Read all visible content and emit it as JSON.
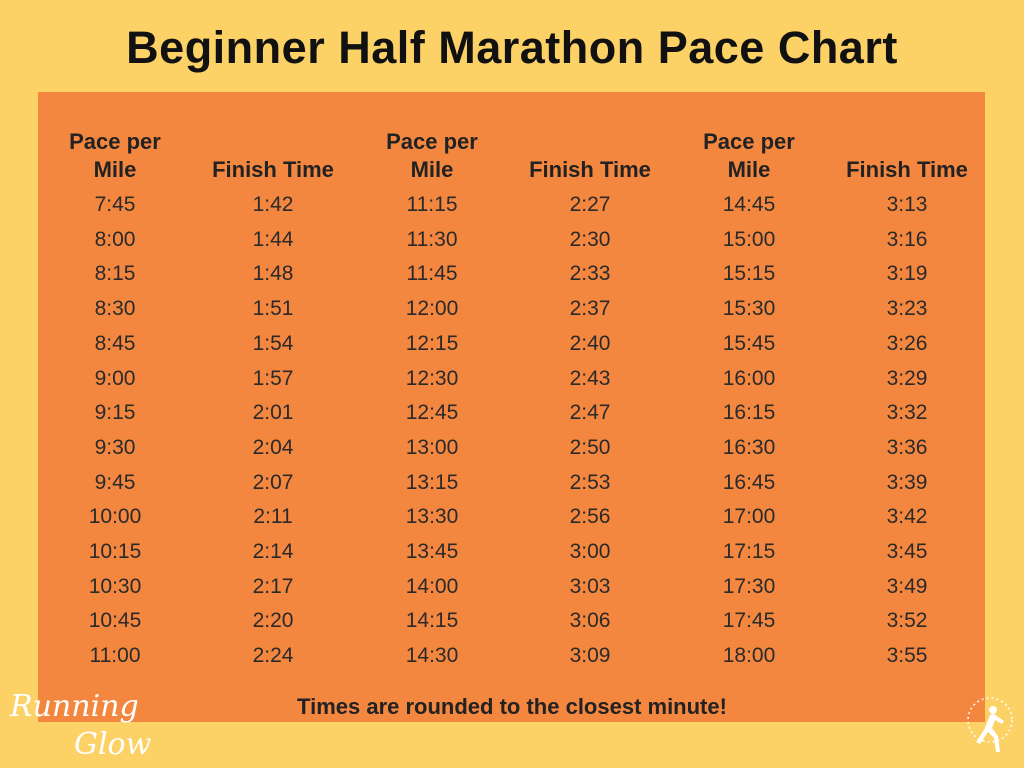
{
  "header": {
    "title": "Beginner Half Marathon Pace Chart"
  },
  "table": {
    "columns": [
      "Pace per Mile",
      "Finish Time",
      "Pace per Mile",
      "Finish Time",
      "Pace per Mile",
      "Finish Time"
    ],
    "rows": [
      [
        "7:45",
        "1:42",
        "11:15",
        "2:27",
        "14:45",
        "3:13"
      ],
      [
        "8:00",
        "1:44",
        "11:30",
        "2:30",
        "15:00",
        "3:16"
      ],
      [
        "8:15",
        "1:48",
        "11:45",
        "2:33",
        "15:15",
        "3:19"
      ],
      [
        "8:30",
        "1:51",
        "12:00",
        "2:37",
        "15:30",
        "3:23"
      ],
      [
        "8:45",
        "1:54",
        "12:15",
        "2:40",
        "15:45",
        "3:26"
      ],
      [
        "9:00",
        "1:57",
        "12:30",
        "2:43",
        "16:00",
        "3:29"
      ],
      [
        "9:15",
        "2:01",
        "12:45",
        "2:47",
        "16:15",
        "3:32"
      ],
      [
        "9:30",
        "2:04",
        "13:00",
        "2:50",
        "16:30",
        "3:36"
      ],
      [
        "9:45",
        "2:07",
        "13:15",
        "2:53",
        "16:45",
        "3:39"
      ],
      [
        "10:00",
        "2:11",
        "13:30",
        "2:56",
        "17:00",
        "3:42"
      ],
      [
        "10:15",
        "2:14",
        "13:45",
        "3:00",
        "17:15",
        "3:45"
      ],
      [
        "10:30",
        "2:17",
        "14:00",
        "3:03",
        "17:30",
        "3:49"
      ],
      [
        "10:45",
        "2:20",
        "14:15",
        "3:06",
        "17:45",
        "3:52"
      ],
      [
        "11:00",
        "2:24",
        "14:30",
        "3:09",
        "18:00",
        "3:55"
      ]
    ],
    "footnote": "Times are rounded to the closest minute!"
  },
  "logo": {
    "top": "Running",
    "bottom": "Glow"
  }
}
